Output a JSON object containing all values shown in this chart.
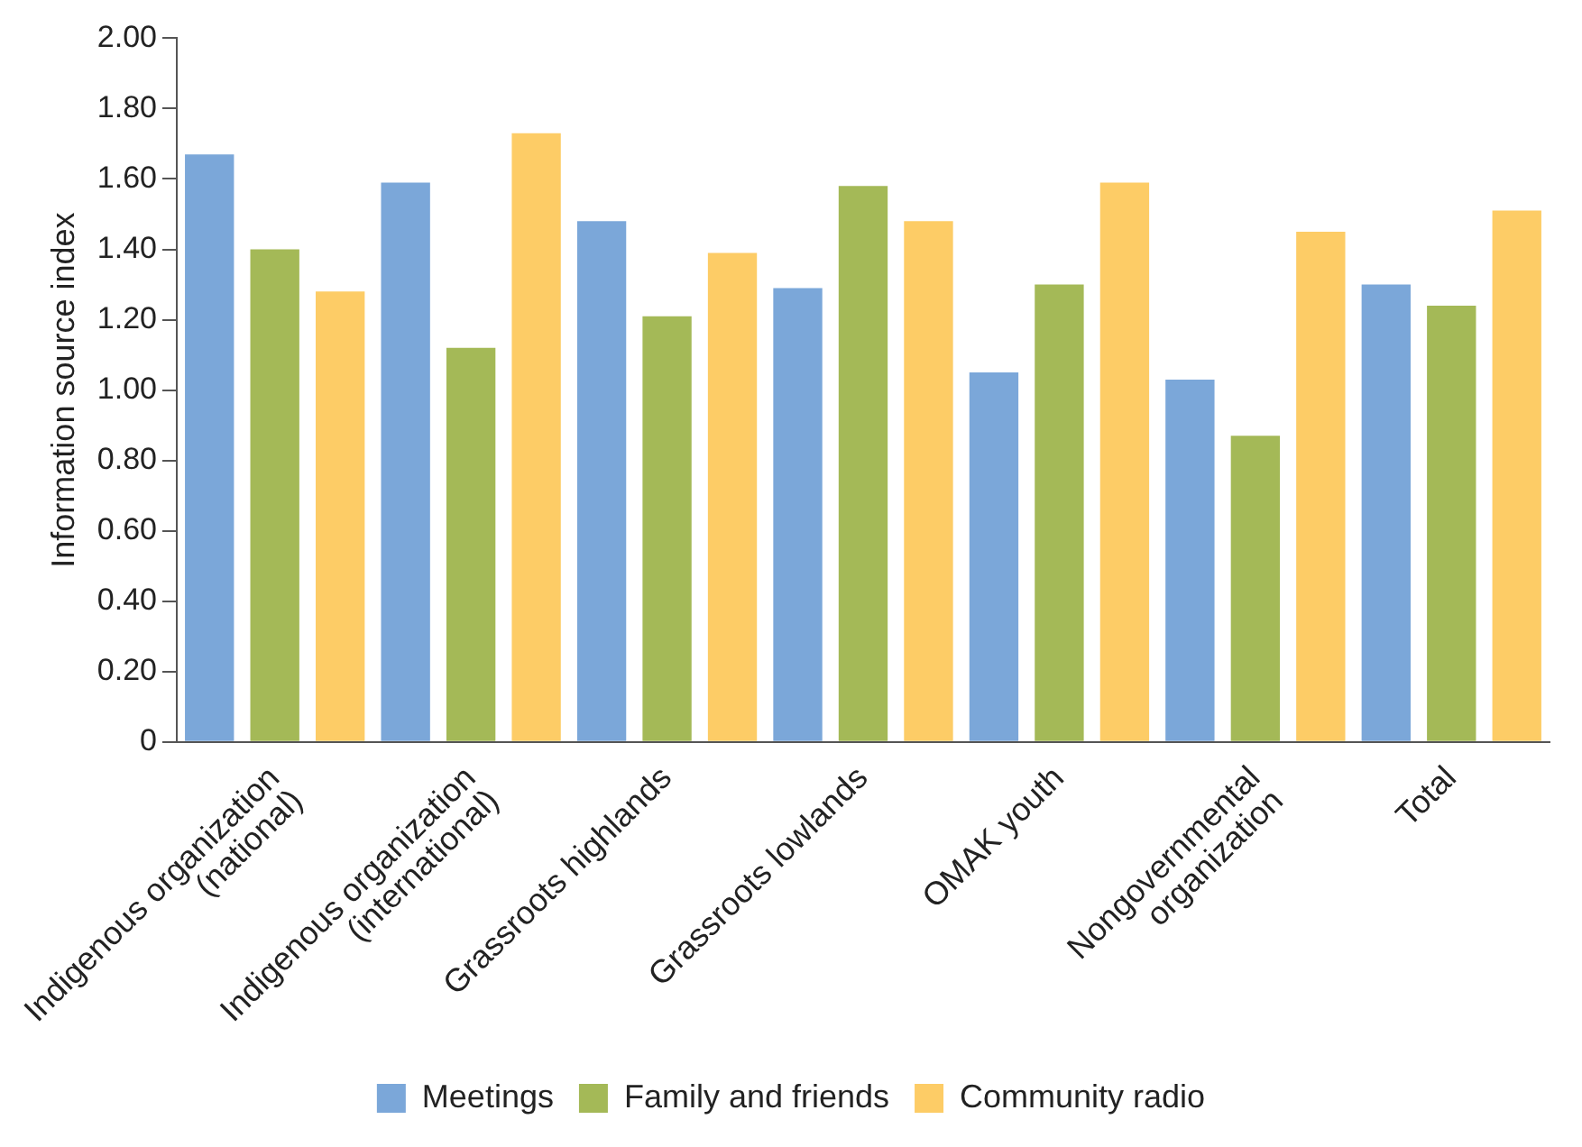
{
  "chart_data": {
    "type": "bar",
    "ylabel": "Information source index",
    "categories": [
      "Indigenous organization\n(national)",
      "Indigenous organization\n(international)",
      "Grassroots highlands",
      "Grassroots lowlands",
      "OMAK youth",
      "Nongovernmental\norganization",
      "Total"
    ],
    "series": [
      {
        "name": "Meetings",
        "color": "#7ba7d9",
        "values": [
          1.67,
          1.59,
          1.48,
          1.29,
          1.05,
          1.03,
          1.3
        ]
      },
      {
        "name": "Family and friends",
        "color": "#a4b957",
        "values": [
          1.4,
          1.12,
          1.21,
          1.58,
          1.3,
          0.87,
          1.24
        ]
      },
      {
        "name": "Community radio",
        "color": "#fdcc66",
        "values": [
          1.28,
          1.73,
          1.39,
          1.48,
          1.59,
          1.45,
          1.51
        ]
      }
    ],
    "ylim": [
      0,
      2
    ],
    "yticks": [
      0,
      {
        "value": 0.2,
        "label": "0.20"
      },
      {
        "value": 0.4,
        "label": "0.40"
      },
      {
        "value": 0.6,
        "label": "0.60"
      },
      {
        "value": 0.8,
        "label": "0.80"
      },
      {
        "value": 1,
        "label": "1.00"
      },
      {
        "value": 1.2,
        "label": "1.20"
      },
      {
        "value": 1.4,
        "label": "1.40"
      },
      {
        "value": 1.6,
        "label": "1.60"
      },
      {
        "value": 1.8,
        "label": "1.80"
      },
      {
        "value": 2,
        "label": "2.00"
      }
    ],
    "grid": false,
    "legend": "bottom"
  }
}
